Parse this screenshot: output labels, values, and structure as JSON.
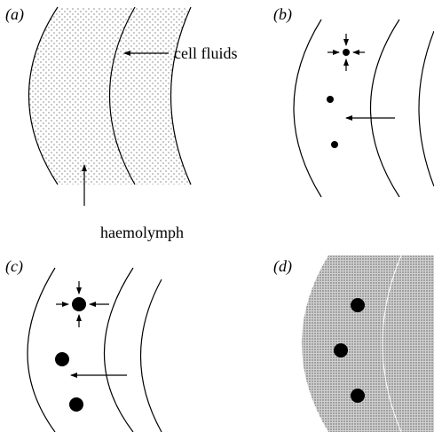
{
  "panels": [
    {
      "label": "(a)",
      "annotations": [
        "cell fluids",
        "haemolymph"
      ]
    },
    {
      "label": "(b)"
    },
    {
      "label": "(c)"
    },
    {
      "label": "(d)"
    }
  ]
}
